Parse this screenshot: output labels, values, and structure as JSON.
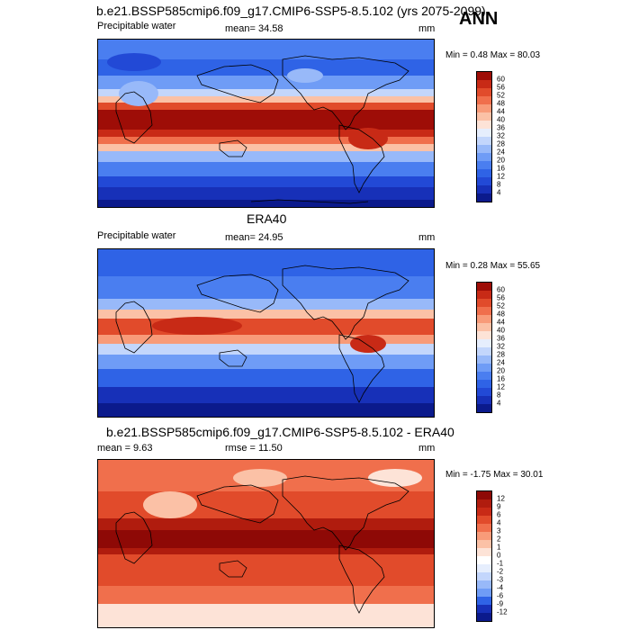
{
  "header": {
    "case_title": "b.e21.BSSP585cmip6.f09_g17.CMIP6-SSP5-8.5.102 (yrs 2075-2099)",
    "season": "ANN"
  },
  "panels": [
    {
      "title": "",
      "variable": "Precipitable water",
      "stat_text": "mean=  34.58",
      "units": "mm",
      "minmax": "Min =   0.48 Max =  80.03",
      "colorbar_labels": [
        "60",
        "56",
        "52",
        "48",
        "44",
        "40",
        "36",
        "32",
        "28",
        "24",
        "20",
        "16",
        "12",
        "8",
        "4"
      ],
      "colors": [
        "#0b1a8c",
        "#1730b8",
        "#2249d6",
        "#2f63e6",
        "#4a7ef0",
        "#6f9cf6",
        "#98b9f9",
        "#c3d6fc",
        "#e6eefd",
        "#fde3d7",
        "#fbc1a6",
        "#f89b79",
        "#f06f4c",
        "#e14b2b",
        "#c82a16",
        "#9e0d07"
      ]
    },
    {
      "title": "ERA40",
      "variable": "Precipitable water",
      "stat_text": "mean=  24.95",
      "units": "mm",
      "minmax": "Min =   0.28 Max =  55.65",
      "colorbar_labels": [
        "60",
        "56",
        "52",
        "48",
        "44",
        "40",
        "36",
        "32",
        "28",
        "24",
        "20",
        "16",
        "12",
        "8",
        "4"
      ],
      "colors": [
        "#0b1a8c",
        "#1730b8",
        "#2249d6",
        "#2f63e6",
        "#4a7ef0",
        "#6f9cf6",
        "#98b9f9",
        "#c3d6fc",
        "#e6eefd",
        "#fde3d7",
        "#fbc1a6",
        "#f89b79",
        "#f06f4c",
        "#e14b2b",
        "#c82a16",
        "#9e0d07"
      ]
    },
    {
      "title": "b.e21.BSSP585cmip6.f09_g17.CMIP6-SSP5-8.5.102 - ERA40",
      "variable": "",
      "stat_left": "mean =   9.63",
      "stat_text": "rmse =  11.50",
      "units": "mm",
      "minmax": "Min =  -1.75 Max =  30.01",
      "colorbar_labels": [
        "12",
        "9",
        "6",
        "4",
        "3",
        "2",
        "1",
        "0",
        "-1",
        "-2",
        "-3",
        "-4",
        "-6",
        "-9",
        "-12"
      ],
      "colors": [
        "#0b1a8c",
        "#1730b8",
        "#2f63e6",
        "#6f9cf6",
        "#98b9f9",
        "#c3d6fc",
        "#e6eefd",
        "#ffffff",
        "#fde3d7",
        "#fbc1a6",
        "#f89b79",
        "#f06f4c",
        "#e14b2b",
        "#c82a16",
        "#b01c0e",
        "#8e0906"
      ]
    }
  ]
}
